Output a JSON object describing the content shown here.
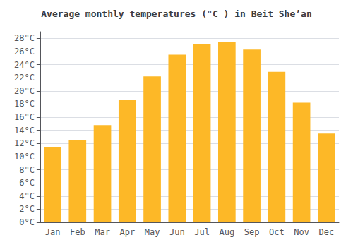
{
  "chart_data": {
    "type": "bar",
    "title": "Average monthly temperatures (°C ) in Beit She’an",
    "categories": [
      "Jan",
      "Feb",
      "Mar",
      "Apr",
      "May",
      "Jun",
      "Jul",
      "Aug",
      "Sep",
      "Oct",
      "Nov",
      "Dec"
    ],
    "values": [
      11.5,
      12.5,
      14.8,
      18.7,
      22.2,
      25.5,
      27.1,
      27.5,
      26.3,
      22.9,
      18.2,
      13.5
    ],
    "color": "#FDB827",
    "ylim": [
      0,
      29
    ],
    "yticks": [
      {
        "value": 0,
        "label": "0°C"
      },
      {
        "value": 2,
        "label": "2°C"
      },
      {
        "value": 4,
        "label": "4°C"
      },
      {
        "value": 6,
        "label": "6°C"
      },
      {
        "value": 8,
        "label": "8°C"
      },
      {
        "value": 10,
        "label": "10°C"
      },
      {
        "value": 12,
        "label": "12°C"
      },
      {
        "value": 14,
        "label": "14°C"
      },
      {
        "value": 16,
        "label": "16°C"
      },
      {
        "value": 18,
        "label": "18°C"
      },
      {
        "value": 20,
        "label": "20°C"
      },
      {
        "value": 22,
        "label": "22°C"
      },
      {
        "value": 24,
        "label": "24°C"
      },
      {
        "value": 26,
        "label": "26°C"
      },
      {
        "value": 28,
        "label": "28°C"
      }
    ],
    "grid": true
  }
}
